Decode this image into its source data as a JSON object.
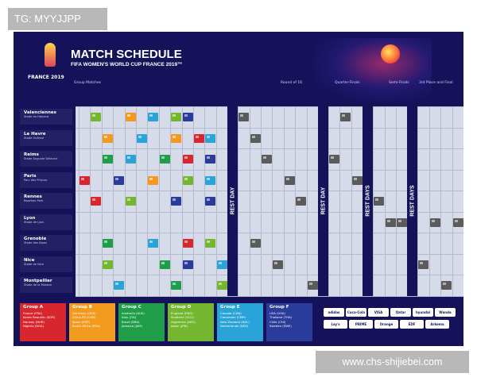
{
  "tag": "TG: MYYJJPP",
  "watermark": "www.chs-shijiebei.com",
  "header": {
    "title": "MATCH SCHEDULE",
    "subtitle": "FIFA WOMEN'S WORLD CUP FRANCE 2019™",
    "logo_text": "FRANCE 2019",
    "logo_icon": "trophy-icon",
    "ball_icon": "ball-icon"
  },
  "stages": [
    "Group Matches",
    "Round of 16",
    "Quarter-Finals",
    "Semi-Finals",
    "3rd Place and Final"
  ],
  "rest_labels": [
    "REST DAY",
    "REST DAY",
    "REST DAYS",
    "REST DAYS"
  ],
  "cities": [
    {
      "name": "Valenciennes",
      "stadium": "Stade du Hainaut"
    },
    {
      "name": "Le Havre",
      "stadium": "Stade Océane"
    },
    {
      "name": "Reims",
      "stadium": "Stade Auguste Delaune"
    },
    {
      "name": "Paris",
      "stadium": "Parc des Princes"
    },
    {
      "name": "Rennes",
      "stadium": "Roazhon Park"
    },
    {
      "name": "Lyon",
      "stadium": "Stade de Lyon"
    },
    {
      "name": "Grenoble",
      "stadium": "Stade des Alpes"
    },
    {
      "name": "Nice",
      "stadium": "Stade de Nice"
    },
    {
      "name": "Montpellier",
      "stadium": "Stade de la Mosson"
    }
  ],
  "groups": [
    {
      "label": "Group A",
      "color": "#d7262e",
      "teams": [
        "France (FRA)",
        "Korea Republic (KOR)",
        "Norway (NOR)",
        "Nigeria (NGA)"
      ]
    },
    {
      "label": "Group B",
      "color": "#f39a1e",
      "teams": [
        "Germany (GER)",
        "China PR (CHN)",
        "Spain (ESP)",
        "South Africa (RSA)"
      ]
    },
    {
      "label": "Group C",
      "color": "#1f9e4a",
      "teams": [
        "Australia (AUS)",
        "Italy (ITA)",
        "Brazil (BRA)",
        "Jamaica (JAM)"
      ]
    },
    {
      "label": "Group D",
      "color": "#73b72f",
      "teams": [
        "England (ENG)",
        "Scotland (SCO)",
        "Argentina (ARG)",
        "Japan (JPN)"
      ]
    },
    {
      "label": "Group E",
      "color": "#2aa4d8",
      "teams": [
        "Canada (CAN)",
        "Cameroon (CMR)",
        "New Zealand (NZL)",
        "Netherlands (NED)"
      ]
    },
    {
      "label": "Group F",
      "color": "#2b3b9a",
      "teams": [
        "USA (USA)",
        "Thailand (THA)",
        "Chile (CHI)",
        "Sweden (SWE)"
      ]
    }
  ],
  "sponsors": [
    "adidas",
    "Coca-Cola",
    "VISA",
    "Qatar Airways",
    "hyundai",
    "Wanda",
    "Lay's",
    "PRIME",
    "Orange",
    "EDF",
    "Arkema"
  ],
  "colors": {
    "background": "#16125a",
    "grid": "#d7dbe9",
    "knockout": "#5b5b5b"
  }
}
